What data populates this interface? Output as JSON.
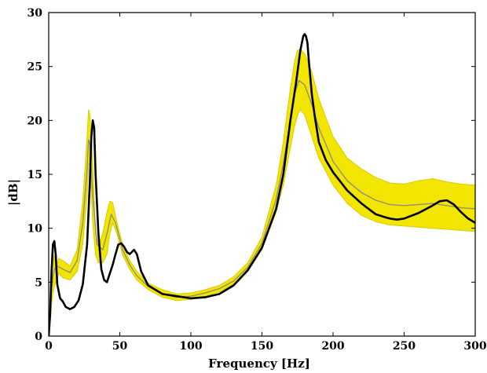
{
  "chart_data": {
    "type": "line",
    "title": "",
    "xlabel": "Frequency [Hz]",
    "ylabel": "|dB|",
    "xlim": [
      0,
      300
    ],
    "ylim": [
      0,
      30
    ],
    "xticks": [
      "0",
      "50",
      "100",
      "150",
      "200",
      "250",
      "300"
    ],
    "yticks": [
      "0",
      "5",
      "10",
      "15",
      "20",
      "25",
      "30"
    ],
    "grid": false,
    "legend": "none",
    "colors": {
      "band_fill": "#f2e600",
      "band_edge": "#d8cc00",
      "mean_line": "#8f8f7a",
      "measured_line": "#000000",
      "axis": "#000000"
    },
    "series": [
      {
        "role": "band",
        "x": [
          0,
          2,
          3,
          4,
          5,
          7,
          10,
          15,
          20,
          24,
          27,
          28,
          29,
          31,
          33,
          35,
          38,
          41,
          43,
          45,
          48,
          52,
          57,
          62,
          70,
          80,
          90,
          100,
          110,
          120,
          130,
          140,
          150,
          160,
          165,
          170,
          173,
          175,
          177,
          180,
          185,
          190,
          200,
          210,
          220,
          230,
          240,
          250,
          260,
          270,
          280,
          290,
          300
        ],
        "lower": [
          0,
          3.0,
          4.0,
          4.6,
          5.0,
          5.8,
          5.4,
          5.2,
          6.0,
          8.5,
          13.0,
          16.0,
          15.8,
          10.5,
          7.5,
          6.8,
          6.8,
          7.6,
          9.5,
          10.5,
          9.5,
          7.5,
          6.2,
          5.2,
          4.3,
          3.6,
          3.3,
          3.4,
          3.7,
          4.1,
          4.8,
          6.0,
          8.0,
          11.5,
          14.0,
          17.5,
          19.5,
          20.5,
          21.0,
          20.5,
          18.5,
          16.5,
          14.0,
          12.3,
          11.2,
          10.6,
          10.3,
          10.2,
          10.1,
          10.0,
          9.9,
          9.8,
          9.7
        ],
        "upper": [
          0,
          5.0,
          6.5,
          7.5,
          6.3,
          7.2,
          7.0,
          6.5,
          8.0,
          12.5,
          18.5,
          21.0,
          20.5,
          16.0,
          9.5,
          8.5,
          9.5,
          11.5,
          12.5,
          12.4,
          10.5,
          8.5,
          7.0,
          6.0,
          4.9,
          4.3,
          3.9,
          4.0,
          4.3,
          4.7,
          5.5,
          6.8,
          9.2,
          14.0,
          18.0,
          23.0,
          25.5,
          26.5,
          26.6,
          26.2,
          24.5,
          22.0,
          18.5,
          16.5,
          15.5,
          14.7,
          14.2,
          14.1,
          14.4,
          14.6,
          14.3,
          14.1,
          14.0
        ]
      },
      {
        "role": "mean",
        "x": [
          0,
          2,
          3,
          4,
          6,
          10,
          15,
          20,
          24,
          27,
          28,
          29,
          31,
          34,
          38,
          41,
          44,
          47,
          52,
          57,
          62,
          70,
          80,
          90,
          100,
          110,
          120,
          130,
          140,
          150,
          160,
          165,
          170,
          173,
          176,
          180,
          185,
          190,
          200,
          210,
          220,
          230,
          240,
          250,
          260,
          270,
          280,
          290,
          300
        ],
        "values": [
          0,
          4.2,
          5.5,
          6.2,
          6.5,
          6.2,
          5.9,
          7.0,
          10.5,
          15.5,
          18.2,
          17.8,
          13.0,
          8.5,
          8.0,
          9.5,
          11.3,
          10.5,
          8.0,
          6.6,
          5.6,
          4.6,
          3.9,
          3.6,
          3.7,
          4.0,
          4.4,
          5.1,
          6.4,
          8.6,
          12.7,
          16.0,
          20.0,
          22.5,
          23.7,
          23.3,
          21.5,
          19.3,
          16.2,
          14.4,
          13.3,
          12.6,
          12.2,
          12.1,
          12.2,
          12.3,
          12.1,
          11.9,
          11.8
        ]
      },
      {
        "role": "measured",
        "x": [
          0,
          1,
          2,
          3,
          4,
          5,
          6,
          8,
          10,
          12,
          15,
          18,
          21,
          24,
          27,
          29,
          30,
          31,
          32,
          33,
          35,
          37,
          39,
          41,
          43,
          45,
          47,
          49,
          51,
          53,
          55,
          57,
          60,
          62,
          65,
          70,
          80,
          90,
          100,
          110,
          120,
          130,
          140,
          150,
          160,
          165,
          170,
          174,
          177,
          179,
          180,
          181,
          182,
          183,
          185,
          187,
          190,
          195,
          200,
          210,
          220,
          230,
          237,
          240,
          245,
          250,
          260,
          270,
          275,
          280,
          285,
          290,
          295,
          300
        ],
        "values": [
          0,
          2.0,
          6.0,
          8.5,
          8.8,
          7.5,
          4.8,
          3.5,
          3.2,
          2.7,
          2.5,
          2.7,
          3.3,
          4.8,
          8.5,
          14.5,
          18.5,
          20.0,
          19.3,
          15.0,
          9.5,
          6.2,
          5.2,
          5.0,
          5.8,
          6.6,
          7.6,
          8.5,
          8.6,
          8.3,
          7.8,
          7.6,
          8.0,
          7.6,
          6.0,
          4.7,
          3.9,
          3.7,
          3.5,
          3.6,
          3.9,
          4.7,
          6.1,
          8.2,
          11.8,
          15.0,
          20.0,
          23.5,
          26.5,
          27.8,
          28.0,
          27.8,
          27.2,
          25.5,
          22.5,
          20.5,
          18.0,
          16.3,
          15.2,
          13.5,
          12.3,
          11.3,
          11.0,
          10.9,
          10.8,
          10.9,
          11.4,
          12.1,
          12.5,
          12.6,
          12.2,
          11.5,
          10.9,
          10.5
        ]
      }
    ]
  }
}
